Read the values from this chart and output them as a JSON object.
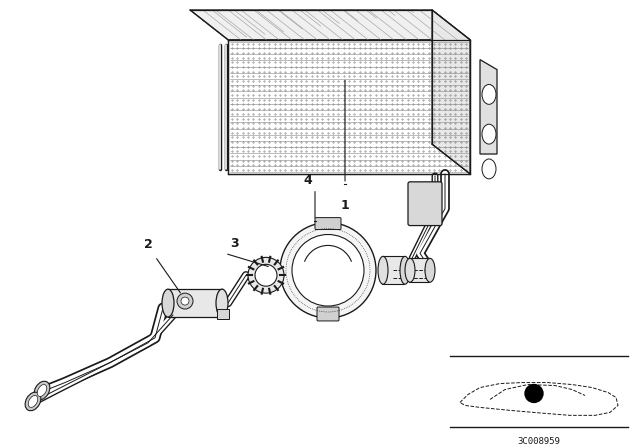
{
  "background_color": "#ffffff",
  "line_color": "#1a1a1a",
  "fig_width": 6.4,
  "fig_height": 4.48,
  "dpi": 100,
  "watermark": "3C008959"
}
